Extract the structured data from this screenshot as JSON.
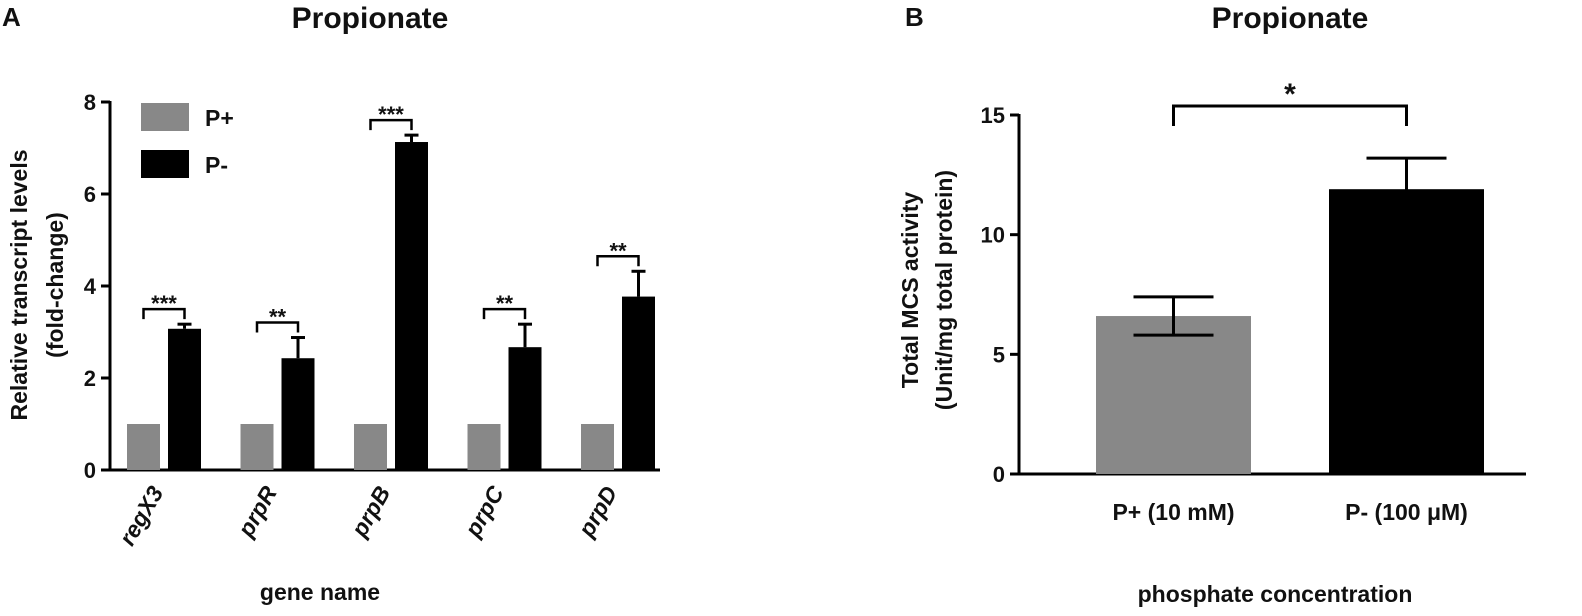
{
  "chart_data": [
    {
      "panel": "A",
      "type": "bar",
      "title": "Propionate",
      "xlabel": "gene name",
      "ylabel": [
        "Relative transcript levels",
        "(fold-change)"
      ],
      "ylim": [
        0,
        8
      ],
      "yticks": [
        0,
        2,
        4,
        6,
        8
      ],
      "categories": [
        "regX3",
        "prpR",
        "prpB",
        "prpC",
        "prpD"
      ],
      "series": [
        {
          "name": "P+",
          "color": "#888888",
          "values": [
            1,
            1,
            1,
            1,
            1
          ],
          "errors": [
            0,
            0,
            0,
            0,
            0
          ]
        },
        {
          "name": "P-",
          "color": "#000000",
          "values": [
            3.07,
            2.43,
            7.13,
            2.67,
            3.77
          ],
          "errors": [
            0.1,
            0.45,
            0.15,
            0.5,
            0.55
          ]
        }
      ],
      "significance": [
        "***",
        "**",
        "***",
        "**",
        "**"
      ],
      "legend_position": "top-left"
    },
    {
      "panel": "B",
      "type": "bar",
      "title": "Propionate",
      "xlabel": "phosphate concentration",
      "ylabel": [
        "Total MCS activity",
        "(Unit/mg total protein)"
      ],
      "ylim": [
        0,
        15
      ],
      "yticks": [
        0,
        5,
        10,
        15
      ],
      "categories": [
        "P+  (10 mM)",
        "P-  (100 μM)"
      ],
      "values": [
        6.6,
        11.9
      ],
      "errors": [
        0.8,
        1.3
      ],
      "colors": [
        "#888888",
        "#000000"
      ],
      "significance": "*"
    }
  ]
}
